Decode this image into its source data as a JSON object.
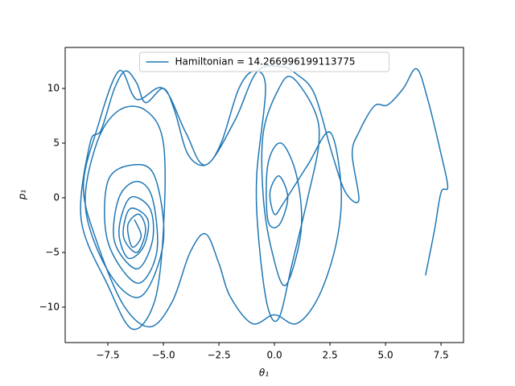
{
  "chart_data": {
    "type": "line",
    "xlabel": "θ₁",
    "ylabel": "p₁",
    "xlim": [
      -9.42,
      8.51
    ],
    "ylim": [
      -13.24,
      13.75
    ],
    "xticks": [
      {
        "value": -7.5,
        "label": "−7.5"
      },
      {
        "value": -5,
        "label": "−5.0"
      },
      {
        "value": -2.5,
        "label": "−2.5"
      },
      {
        "value": 0,
        "label": "0.0"
      },
      {
        "value": 2.5,
        "label": "2.5"
      },
      {
        "value": 5,
        "label": "5.0"
      },
      {
        "value": 7.5,
        "label": "7.5"
      }
    ],
    "yticks": [
      {
        "value": -10,
        "label": "−10"
      },
      {
        "value": -5,
        "label": "−5"
      },
      0,
      5,
      10
    ],
    "legend": "upper center",
    "x": [
      -6.3,
      -6.0,
      -6.4,
      -6.6,
      -6.1,
      -5.8,
      -6.2,
      -6.8,
      -6.5,
      -5.7,
      -5.9,
      -6.6,
      -7.0,
      -6.5,
      -5.6,
      -5.5,
      -6.2,
      -7.2,
      -7.0,
      -6.2,
      -5.5,
      -5.3,
      -6.2,
      -7.5,
      -7.5,
      -6.4,
      -5.4,
      -5.0,
      -6.0,
      -7.4,
      -8.5,
      -8.0,
      -7.0,
      -5.8,
      -5.0,
      -5.0,
      -5.4,
      -6.4,
      -7.5,
      -8.7,
      -8.3,
      -7.8,
      -7.2,
      -6.7,
      -6.2,
      -5.8,
      -5.0,
      -4.5,
      -3.9,
      -3.1,
      -2.4,
      -1.6,
      -0.9,
      -0.4,
      -0.8,
      -0.7,
      -0.3,
      0.2,
      0.8,
      1.5,
      2.0,
      1.8,
      0.8,
      0.2,
      -0.5,
      -0.5,
      -0.1,
      0.5,
      1.2,
      1.0,
      0.3,
      -0.3,
      -0.3,
      0.2,
      0.6,
      0.2,
      -0.2,
      0.0,
      0.4,
      1.5,
      2.5,
      3.0,
      2.8,
      2.0,
      1.0,
      0.0,
      -1.0,
      -2.0,
      -2.5,
      -3.1,
      -3.8,
      -4.6,
      -5.6,
      -6.8,
      -8.0,
      -8.6,
      -8.0,
      -7.0,
      -6.2,
      -5.0,
      -4.0,
      -3.1,
      -1.8,
      -0.8,
      0.3,
      1.0,
      1.8,
      2.6,
      3.2,
      3.8,
      3.5,
      3.8,
      4.5,
      5.1,
      5.8,
      6.4,
      6.9,
      7.5,
      7.8,
      7.5,
      7.2,
      6.8
    ],
    "series": [
      {
        "name": "Hamiltonian = 14.266996199113775",
        "color": "#1f77b4",
        "values": [
          -2,
          -3.5,
          -4.5,
          -2.5,
          -1.5,
          -3,
          -5,
          -3.5,
          -1,
          -2,
          -4.5,
          -5.5,
          -3,
          0,
          -1,
          -4,
          -6.5,
          -4,
          0,
          1.5,
          0,
          -5,
          -7.8,
          -4,
          1.5,
          3,
          2,
          -4,
          -9,
          -7,
          -1,
          5,
          8,
          8,
          5,
          -3,
          -9.5,
          -12,
          -8,
          -2,
          5,
          6.2,
          10,
          11.6,
          10.5,
          8.7,
          10,
          8,
          4,
          3,
          5,
          10,
          11.6,
          10,
          2,
          -4,
          -10,
          -11,
          -6,
          0,
          5,
          8,
          11,
          10,
          6,
          0,
          -5,
          -8,
          -3,
          2,
          5,
          3,
          -2,
          -2.5,
          0,
          2,
          0.5,
          -1.5,
          -0.5,
          3,
          6,
          1,
          -4,
          -9,
          -11.5,
          -10.7,
          -11.5,
          -9,
          -6,
          -3.3,
          -5,
          -9.5,
          -11.8,
          -9.8,
          -4,
          1,
          6.2,
          11.6,
          9,
          10,
          6,
          3,
          7,
          11.5,
          12,
          11.3,
          9.5,
          4,
          0.5,
          -0.2,
          4,
          6,
          8.4,
          8.5,
          10,
          11.8,
          9,
          4,
          1,
          0.5,
          -3,
          -7.1
        ]
      }
    ]
  }
}
